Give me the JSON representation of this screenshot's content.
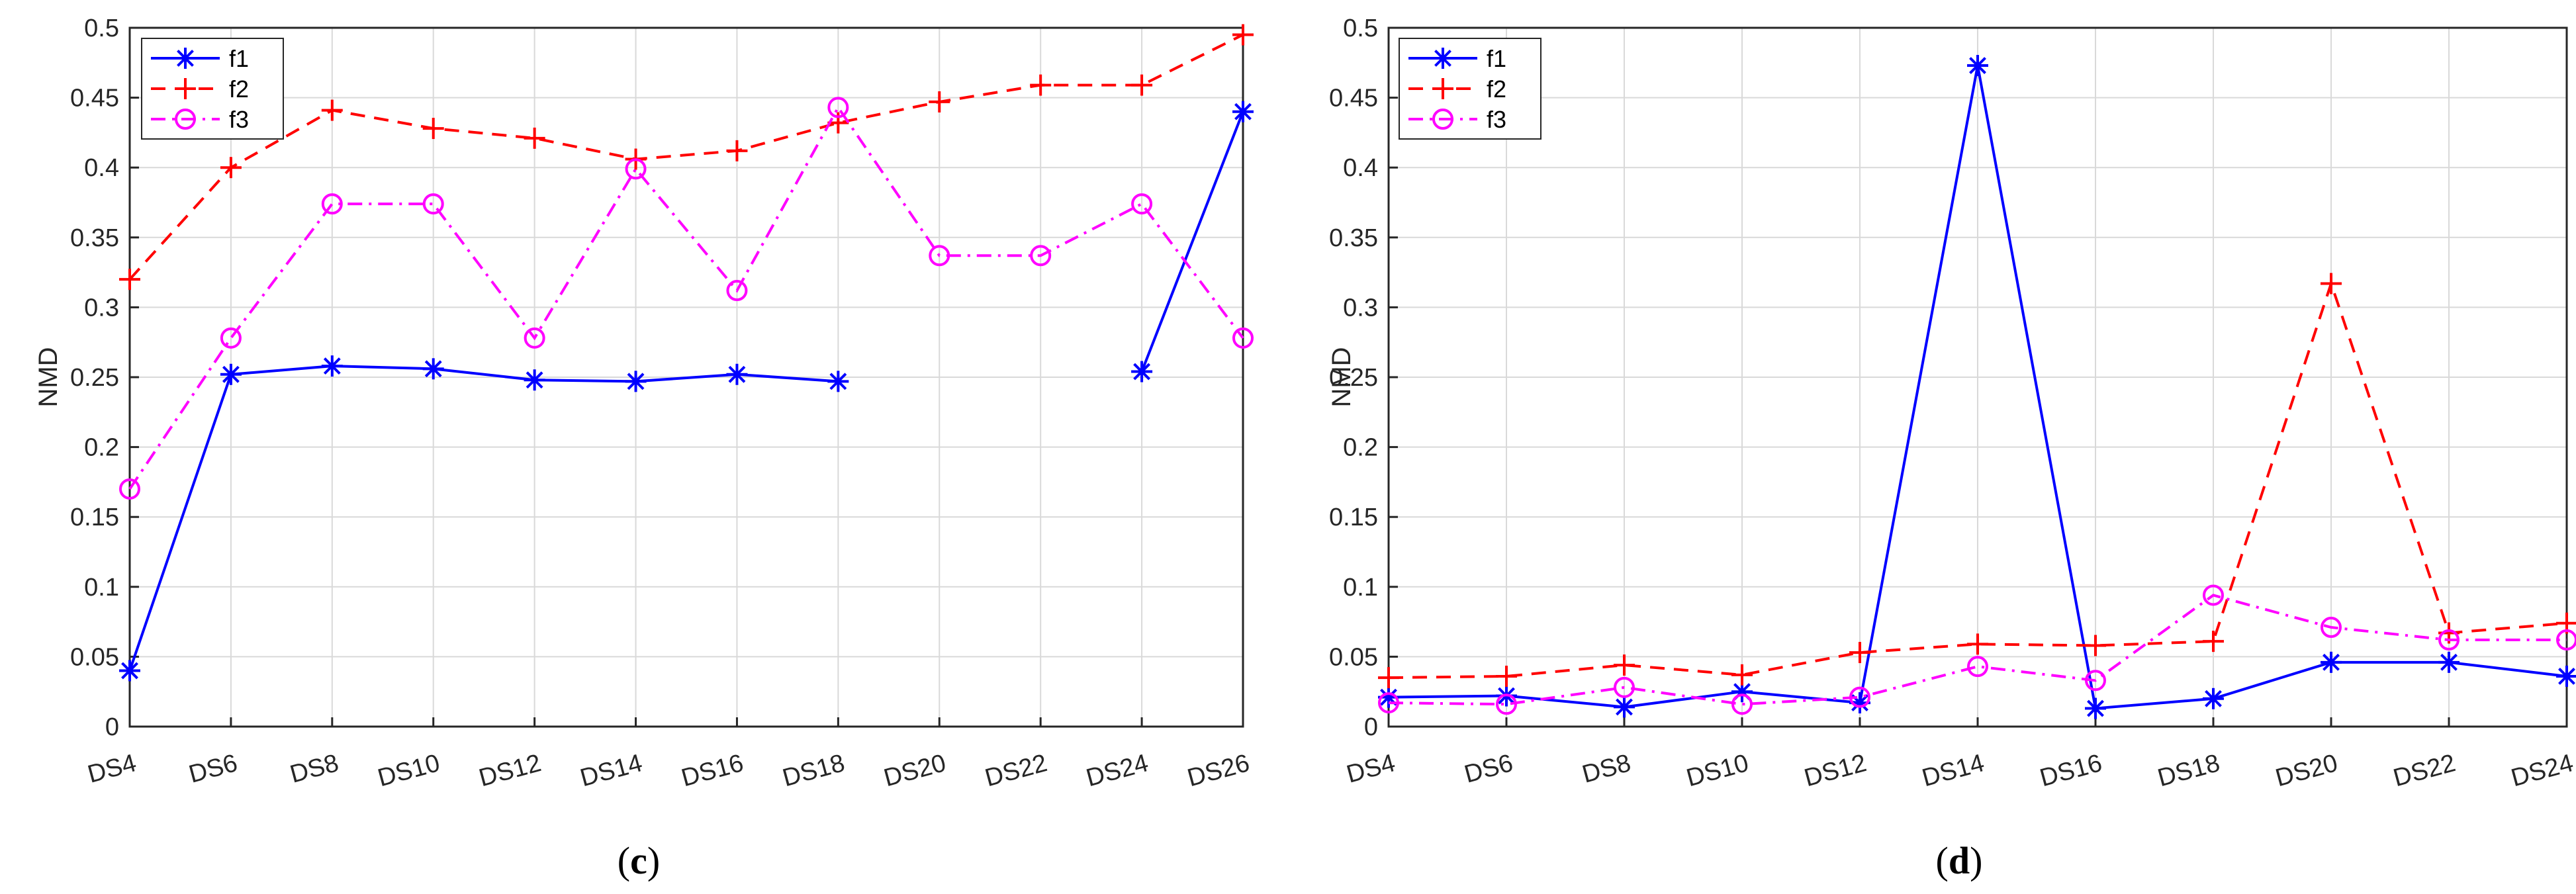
{
  "colors": {
    "f1": "#0000ff",
    "f2": "#ff0000",
    "f3": "#ff00ff",
    "grid": "#d9d9d9",
    "axis": "#262626"
  },
  "chart_data": [
    {
      "type": "line",
      "panel_label": "c",
      "ylabel": "NMD",
      "categories": [
        "DS4",
        "DS6",
        "DS8",
        "DS10",
        "DS12",
        "DS14",
        "DS16",
        "DS18",
        "DS20",
        "DS22",
        "DS24",
        "DS26"
      ],
      "ylim": [
        0,
        0.5
      ],
      "yticks": [
        0,
        0.05,
        0.1,
        0.15,
        0.2,
        0.25,
        0.3,
        0.35,
        0.4,
        0.45,
        0.5
      ],
      "grid": true,
      "legend": "top-left",
      "series": [
        {
          "name": "f1",
          "color": "#0000ff",
          "dash": "solid",
          "marker": "asterisk",
          "values": [
            0.04,
            0.252,
            0.258,
            0.256,
            0.248,
            0.247,
            0.252,
            0.247,
            null,
            null,
            0.254,
            0.44
          ]
        },
        {
          "name": "f2",
          "color": "#ff0000",
          "dash": "dashed",
          "marker": "plus",
          "values": [
            0.32,
            0.4,
            0.441,
            0.428,
            0.421,
            0.406,
            0.412,
            0.432,
            0.447,
            0.459,
            0.459,
            0.495
          ]
        },
        {
          "name": "f3",
          "color": "#ff00ff",
          "dash": "dashdot",
          "marker": "circle",
          "values": [
            0.17,
            0.278,
            0.374,
            0.374,
            0.278,
            0.399,
            0.312,
            0.443,
            0.337,
            0.337,
            0.374,
            0.278
          ]
        }
      ]
    },
    {
      "type": "line",
      "panel_label": "d",
      "ylabel": "NMD",
      "categories": [
        "DS4",
        "DS6",
        "DS8",
        "DS10",
        "DS12",
        "DS14",
        "DS16",
        "DS18",
        "DS20",
        "DS22",
        "DS24"
      ],
      "ylim": [
        0,
        0.5
      ],
      "yticks": [
        0,
        0.05,
        0.1,
        0.15,
        0.2,
        0.25,
        0.3,
        0.35,
        0.4,
        0.45,
        0.5
      ],
      "grid": true,
      "legend": "top-left",
      "series": [
        {
          "name": "f1",
          "color": "#0000ff",
          "dash": "solid",
          "marker": "asterisk",
          "values": [
            0.021,
            0.022,
            0.014,
            0.025,
            0.017,
            0.473,
            0.013,
            0.02,
            0.046,
            0.046,
            0.036
          ]
        },
        {
          "name": "f2",
          "color": "#ff0000",
          "dash": "dashed",
          "marker": "plus",
          "values": [
            0.035,
            0.036,
            0.044,
            0.037,
            0.053,
            0.059,
            0.058,
            0.061,
            0.317,
            0.067,
            0.074
          ]
        },
        {
          "name": "f3",
          "color": "#ff00ff",
          "dash": "dashdot",
          "marker": "circle",
          "values": [
            0.017,
            0.016,
            0.028,
            0.016,
            0.021,
            0.043,
            0.033,
            0.094,
            0.071,
            0.062,
            0.062
          ]
        }
      ]
    }
  ]
}
